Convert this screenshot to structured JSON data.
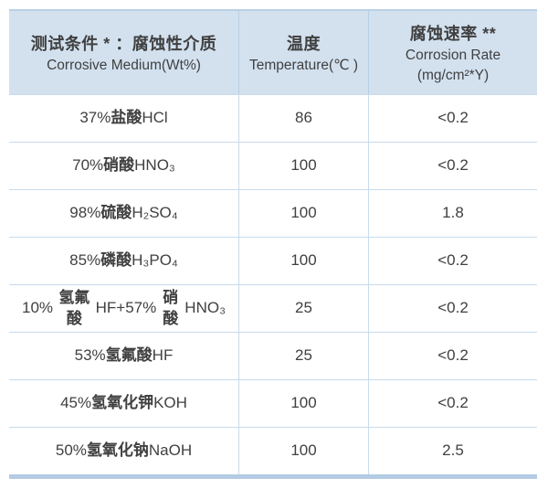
{
  "table": {
    "header": {
      "medium": {
        "zh": "测试条件 * ：腐蚀性介质",
        "en": "Corrosive Medium(Wt%)"
      },
      "temperature": {
        "zh": "温度",
        "en": "Temperature(℃ )"
      },
      "rate": {
        "zh": "腐蚀速率 **",
        "en": "Corrosion Rate",
        "unit": "(mg/cm²*Y)"
      }
    },
    "rows": [
      {
        "medium": "37% 盐酸 HCl",
        "temperature": "86",
        "rate": "<0.2"
      },
      {
        "medium": "70% 硝酸 HNO₃",
        "temperature": "100",
        "rate": "<0.2"
      },
      {
        "medium": "98% 硫酸 H₂SO₄",
        "temperature": "100",
        "rate": "1.8"
      },
      {
        "medium": "85% 磷酸 H₃PO₄",
        "temperature": "100",
        "rate": "<0.2"
      },
      {
        "medium": "10% 氢氟酸 HF+57% 硝酸 HNO₃",
        "temperature": "25",
        "rate": "<0.2"
      },
      {
        "medium": "53% 氢氟酸 HF",
        "temperature": "25",
        "rate": "<0.2"
      },
      {
        "medium": "45% 氢氧化钾 KOH",
        "temperature": "100",
        "rate": "<0.2"
      },
      {
        "medium": "50% 氢氧化钠 NaOH",
        "temperature": "100",
        "rate": "2.5"
      }
    ]
  },
  "colors": {
    "header_bg": "#d3e1ef",
    "header_divider": "#b9d0e6",
    "grid_line": "#c8dbeb",
    "top_border": "#b9cfe5",
    "bottom_bar": "#b3cbe3",
    "text": "#404040"
  }
}
